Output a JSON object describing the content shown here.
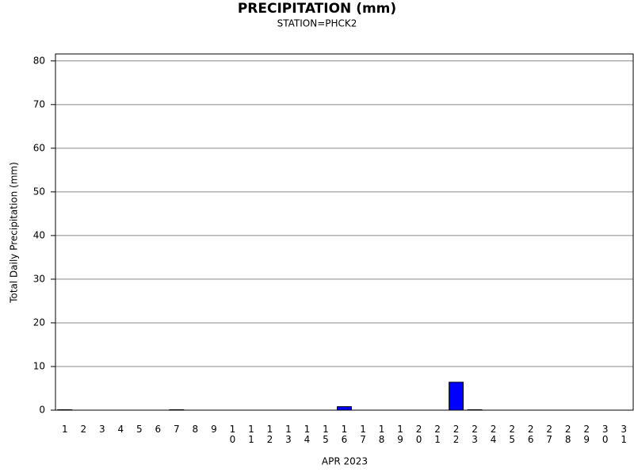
{
  "chart_data": {
    "type": "bar",
    "title": "PRECIPITATION (mm)",
    "subtitle": "STATION=PHCK2",
    "x_label": "APR 2023",
    "y_label": "Total Daily Precipitation (mm)",
    "categories": [
      "1",
      "2",
      "3",
      "4",
      "5",
      "6",
      "7",
      "8",
      "9",
      "10",
      "11",
      "12",
      "13",
      "14",
      "15",
      "16",
      "17",
      "18",
      "19",
      "20",
      "21",
      "22",
      "23",
      "24",
      "25",
      "26",
      "27",
      "28",
      "29",
      "30",
      "31"
    ],
    "values": [
      0.1,
      0,
      0,
      0,
      0,
      0,
      0.1,
      0,
      0,
      0,
      0,
      0,
      0,
      0,
      0,
      0.8,
      0,
      0,
      0,
      0,
      0,
      6.4,
      0.1,
      0,
      0,
      0,
      0,
      0,
      0,
      0,
      0
    ],
    "color": "#0000ff",
    "ylim": [
      0,
      81.6
    ],
    "yticks": [
      0,
      10,
      20,
      30,
      40,
      50,
      60,
      70,
      80
    ],
    "grid": true
  }
}
